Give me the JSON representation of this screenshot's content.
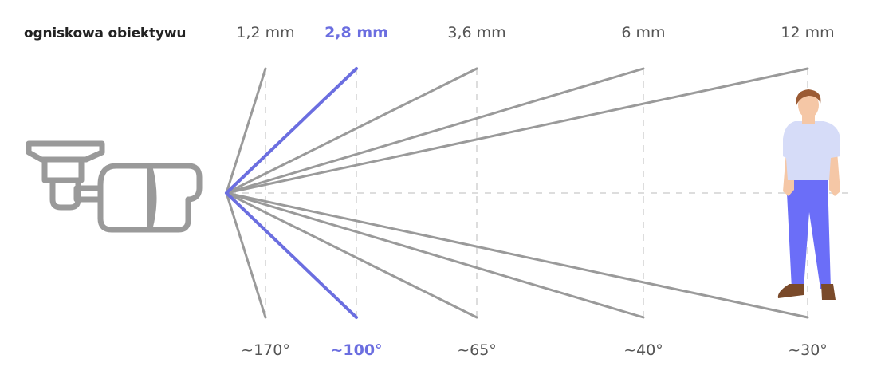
{
  "title": "ogniskowa obiektywu",
  "colors": {
    "highlight": "#6b6ee0",
    "line": "#9a9a9a",
    "guide": "#dddddd",
    "camera": "#9a9a9a",
    "skin": "#f5c7a6",
    "hair": "#9b5b34",
    "shirt": "#d6dcf8",
    "pants": "#6b6ef8",
    "shoes": "#7a4a2a"
  },
  "icons": [
    "camera-icon",
    "person-icon"
  ],
  "lenses": [
    {
      "focal": "1,2 mm",
      "angle": "~170°",
      "highlight": false
    },
    {
      "focal": "2,8 mm",
      "angle": "~100°",
      "highlight": true
    },
    {
      "focal": "3,6 mm",
      "angle": "~65°",
      "highlight": false
    },
    {
      "focal": "6 mm",
      "angle": "~40°",
      "highlight": false
    },
    {
      "focal": "12 mm",
      "angle": "~30°",
      "highlight": false
    }
  ]
}
